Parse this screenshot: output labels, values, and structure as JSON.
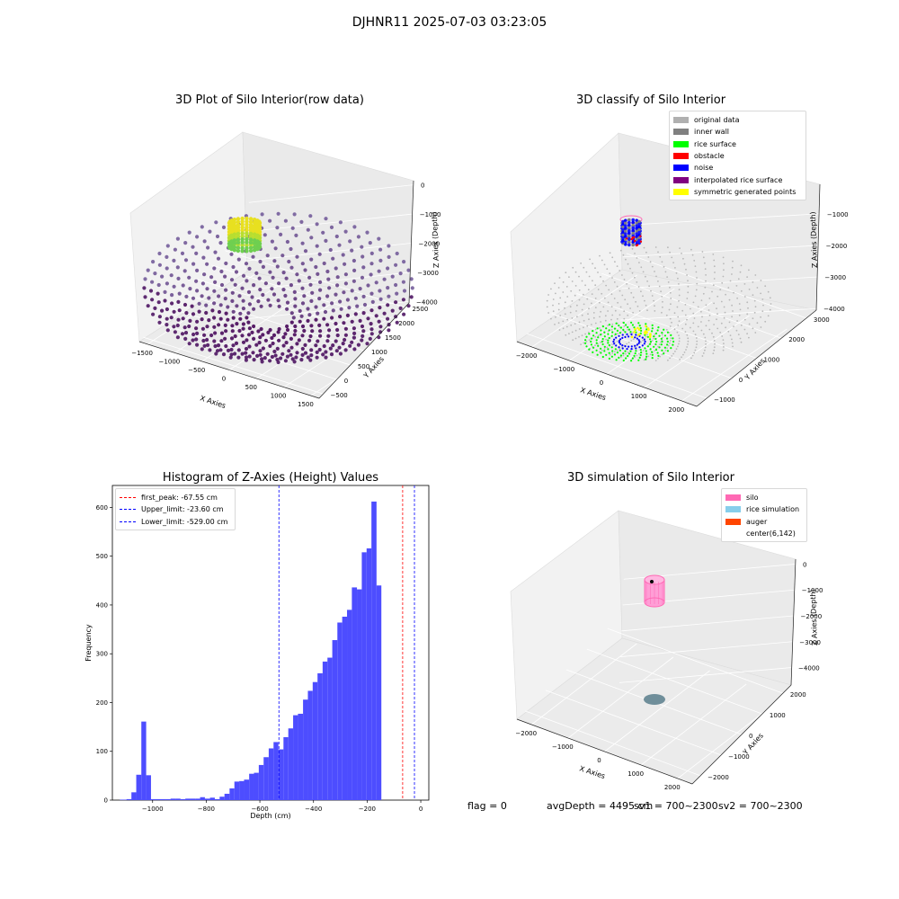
{
  "figure": {
    "title": "DJHNR11 2025-07-03 03:23:05"
  },
  "plots": {
    "raw": {
      "title": "3D Plot of Silo Interior(row data)",
      "xlabel": "X Axies",
      "ylabel": "Y Axies",
      "zlabel": "Z Axies (Depth)",
      "xticks": [
        "−1500",
        "−1000",
        "−500",
        "0",
        "500",
        "1000",
        "1500"
      ],
      "yticks": [
        "−500",
        "0",
        "500",
        "1000",
        "1500",
        "2000",
        "2500"
      ],
      "zticks": [
        "0",
        "−1000",
        "−2000",
        "−3000",
        "−4000"
      ]
    },
    "classify": {
      "title": "3D classify of Silo Interior",
      "xlabel": "X Axies",
      "ylabel": "Y Axies",
      "zlabel": "Z Axies (Depth)",
      "xticks": [
        "−2000",
        "−1000",
        "0",
        "1000",
        "2000"
      ],
      "yticks": [
        "−1000",
        "0",
        "1000",
        "2000",
        "3000"
      ],
      "zticks": [
        "−1000",
        "−2000",
        "−3000",
        "−4000"
      ],
      "legend": [
        {
          "label": "original data",
          "color": "#b0b0b0"
        },
        {
          "label": "inner wall",
          "color": "#808080"
        },
        {
          "label": "rice surface",
          "color": "#00ff00"
        },
        {
          "label": "obstacle",
          "color": "#ff0000"
        },
        {
          "label": "noise",
          "color": "#0000ff"
        },
        {
          "label": "interpolated rice surface",
          "color": "#800080"
        },
        {
          "label": "symmetric generated points",
          "color": "#ffff00"
        }
      ]
    },
    "simulation": {
      "title": "3D simulation of Silo Interior",
      "xlabel": "X Axies",
      "ylabel": "Y Axies",
      "zlabel": "Z Axies (Depth)",
      "xticks": [
        "−2000",
        "−1000",
        "0",
        "1000",
        "2000"
      ],
      "yticks": [
        "−2000",
        "−1000",
        "0",
        "1000",
        "2000"
      ],
      "zticks": [
        "0",
        "−1000",
        "−2000",
        "−3000",
        "−4000"
      ],
      "legend": [
        {
          "label": "silo",
          "color": "#ff69b4"
        },
        {
          "label": "rice simulation",
          "color": "#87ceeb"
        },
        {
          "label": "auger",
          "color": "#ff4500"
        },
        {
          "label": "center(6,142)",
          "color": "#ffffff"
        }
      ]
    }
  },
  "chart_data": {
    "type": "bar",
    "title": "Histogram of Z-Axies (Height) Values",
    "xlabel": "Depth (cm)",
    "ylabel": "Frequency",
    "xlim": [
      -1150,
      30
    ],
    "ylim": [
      0,
      645
    ],
    "xticks": [
      -1000,
      -800,
      -600,
      -400,
      -200,
      0
    ],
    "yticks": [
      0,
      100,
      200,
      300,
      400,
      500,
      600
    ],
    "bar_color": "#4d4dff",
    "bins": [
      {
        "x0": -1122,
        "x1": -1097,
        "count": 1
      },
      {
        "x0": -1097,
        "x1": -1079,
        "count": 2
      },
      {
        "x0": -1079,
        "x1": -1061,
        "count": 16
      },
      {
        "x0": -1061,
        "x1": -1042,
        "count": 52
      },
      {
        "x0": -1042,
        "x1": -1024,
        "count": 161
      },
      {
        "x0": -1024,
        "x1": -1006,
        "count": 51
      },
      {
        "x0": -1006,
        "x1": -987,
        "count": 2
      },
      {
        "x0": -987,
        "x1": -969,
        "count": 2
      },
      {
        "x0": -969,
        "x1": -951,
        "count": 2
      },
      {
        "x0": -951,
        "x1": -933,
        "count": 2
      },
      {
        "x0": -933,
        "x1": -914,
        "count": 3
      },
      {
        "x0": -914,
        "x1": -896,
        "count": 3
      },
      {
        "x0": -896,
        "x1": -878,
        "count": 2
      },
      {
        "x0": -878,
        "x1": -860,
        "count": 3
      },
      {
        "x0": -860,
        "x1": -841,
        "count": 3
      },
      {
        "x0": -841,
        "x1": -823,
        "count": 3
      },
      {
        "x0": -823,
        "x1": -805,
        "count": 6
      },
      {
        "x0": -805,
        "x1": -786,
        "count": 3
      },
      {
        "x0": -786,
        "x1": -768,
        "count": 5
      },
      {
        "x0": -768,
        "x1": -750,
        "count": 2
      },
      {
        "x0": -750,
        "x1": -732,
        "count": 7
      },
      {
        "x0": -732,
        "x1": -713,
        "count": 13
      },
      {
        "x0": -713,
        "x1": -695,
        "count": 24
      },
      {
        "x0": -695,
        "x1": -677,
        "count": 38
      },
      {
        "x0": -677,
        "x1": -659,
        "count": 39
      },
      {
        "x0": -659,
        "x1": -640,
        "count": 42
      },
      {
        "x0": -640,
        "x1": -622,
        "count": 54
      },
      {
        "x0": -622,
        "x1": -604,
        "count": 56
      },
      {
        "x0": -604,
        "x1": -586,
        "count": 72
      },
      {
        "x0": -586,
        "x1": -567,
        "count": 88
      },
      {
        "x0": -567,
        "x1": -549,
        "count": 106
      },
      {
        "x0": -549,
        "x1": -531,
        "count": 119
      },
      {
        "x0": -531,
        "x1": -512,
        "count": 104
      },
      {
        "x0": -512,
        "x1": -494,
        "count": 129
      },
      {
        "x0": -494,
        "x1": -476,
        "count": 147
      },
      {
        "x0": -476,
        "x1": -458,
        "count": 174
      },
      {
        "x0": -458,
        "x1": -439,
        "count": 177
      },
      {
        "x0": -439,
        "x1": -421,
        "count": 206
      },
      {
        "x0": -421,
        "x1": -403,
        "count": 224
      },
      {
        "x0": -403,
        "x1": -385,
        "count": 242
      },
      {
        "x0": -385,
        "x1": -366,
        "count": 260
      },
      {
        "x0": -366,
        "x1": -348,
        "count": 284
      },
      {
        "x0": -348,
        "x1": -330,
        "count": 292
      },
      {
        "x0": -330,
        "x1": -311,
        "count": 328
      },
      {
        "x0": -311,
        "x1": -293,
        "count": 364
      },
      {
        "x0": -293,
        "x1": -275,
        "count": 376
      },
      {
        "x0": -275,
        "x1": -257,
        "count": 390
      },
      {
        "x0": -257,
        "x1": -238,
        "count": 436
      },
      {
        "x0": -238,
        "x1": -220,
        "count": 432
      },
      {
        "x0": -220,
        "x1": -202,
        "count": 508
      },
      {
        "x0": -202,
        "x1": -184,
        "count": 516
      },
      {
        "x0": -184,
        "x1": -165,
        "count": 612
      },
      {
        "x0": -165,
        "x1": -147,
        "count": 440
      }
    ],
    "vlines": [
      {
        "label": "first_peak: -67.55 cm",
        "x": -67.55,
        "color": "#ff0000"
      },
      {
        "label": "Upper_limit: -23.60 cm",
        "x": -23.6,
        "color": "#0000ff"
      },
      {
        "label": "Lower_limit: -529.00 cm",
        "x": -529.0,
        "color": "#0000ff"
      }
    ],
    "legend_position": "upper left"
  },
  "footer": {
    "flag": "flag = 0",
    "avg": "avgDepth = 4495 cm",
    "sv1": "sv1 = 700~2300",
    "sv2": "sv2 = 700~2300"
  }
}
